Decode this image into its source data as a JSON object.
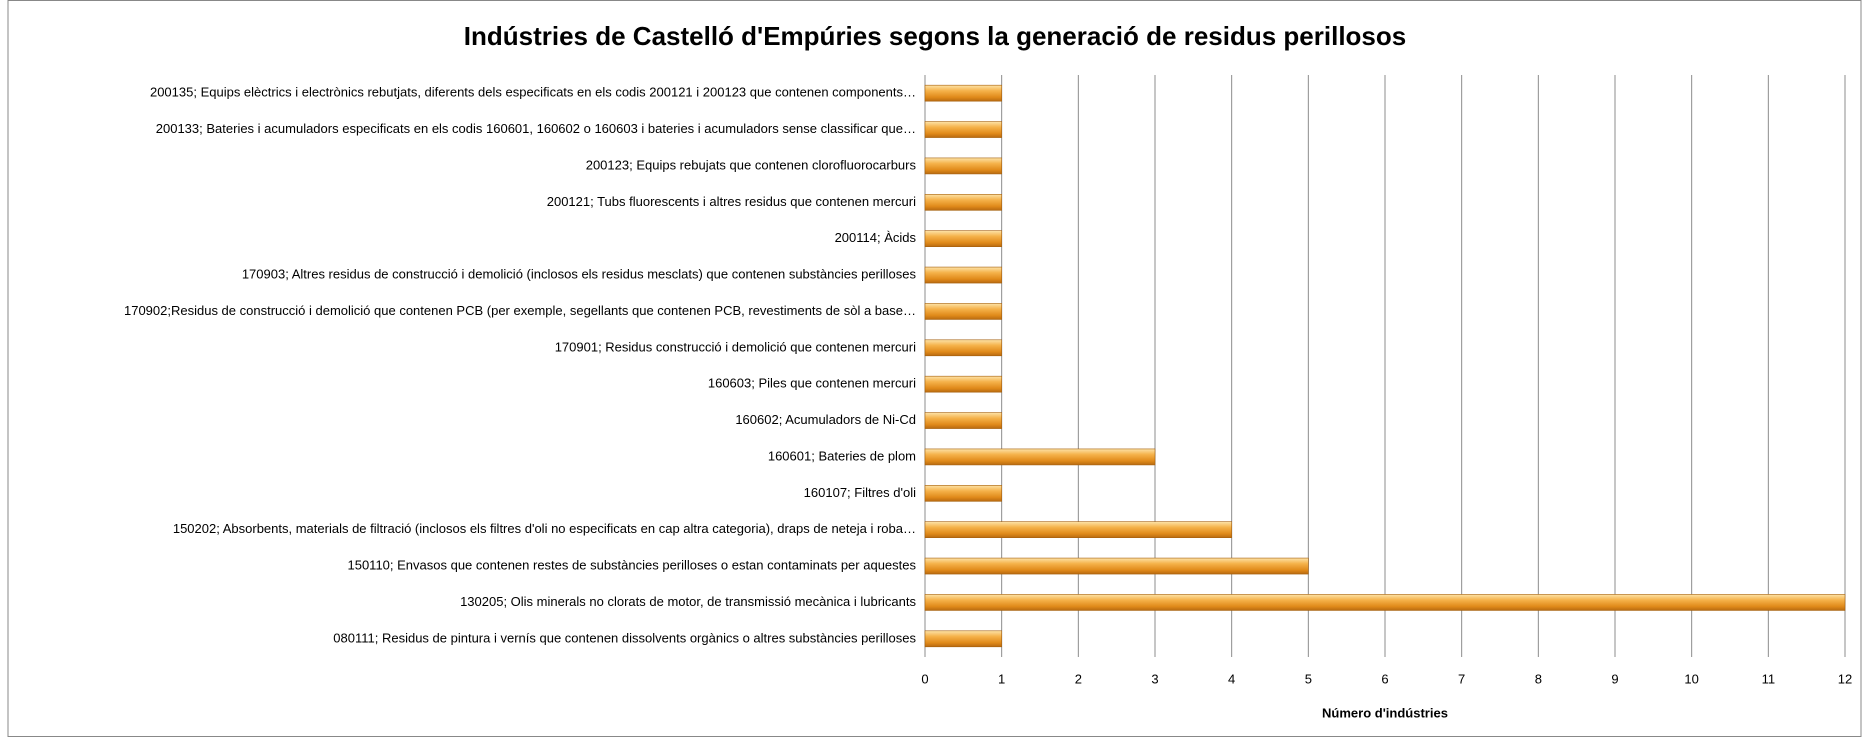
{
  "chart_data": {
    "type": "bar",
    "orientation": "horizontal",
    "title": "Indústries de Castelló d'Empúries segons la generació de residus perillosos",
    "x_label": "Número d'indústries",
    "categories": [
      "200135; Equips elèctrics i electrònics rebutjats, diferents dels especificats en els codis 200121 i 200123 que contenen components…",
      "200133; Bateries i acumuladors especificats en els codis 160601, 160602 o 160603 i bateries i acumuladors sense classificar que…",
      "200123; Equips rebujats que contenen clorofluorocarburs",
      "200121; Tubs fluorescents i altres residus que contenen mercuri",
      "200114; Àcids",
      "170903; Altres residus de construcció i demolició (inclosos els residus mesclats) que contenen substàncies perilloses",
      "170902;Residus de construcció i demolició que contenen PCB (per exemple, segellants que contenen PCB, revestiments de sòl a base…",
      "170901; Residus construcció i demolició que contenen mercuri",
      "160603; Piles que contenen mercuri",
      "160602; Acumuladors de Ni-Cd",
      "160601; Bateries de plom",
      "160107; Filtres d'oli",
      "150202; Absorbents, materials de filtració (inclosos els filtres d'oli no especificats en cap altra categoria), draps de neteja i roba…",
      "150110; Envasos que contenen restes de substàncies perilloses o estan contaminats per aquestes",
      "130205; Olis minerals no clorats de motor, de transmissió mecànica i lubricants",
      "080111; Residus de pintura i vernís que contenen dissolvents orgànics o altres substàncies perilloses"
    ],
    "values": [
      1,
      1,
      1,
      1,
      1,
      1,
      1,
      1,
      1,
      1,
      3,
      1,
      4,
      5,
      12,
      1
    ],
    "color": "#f0a030",
    "xlim": [
      0,
      12
    ],
    "xticks": [
      0,
      1,
      2,
      3,
      4,
      5,
      6,
      7,
      8,
      9,
      10,
      11,
      12
    ],
    "grid": true
  }
}
